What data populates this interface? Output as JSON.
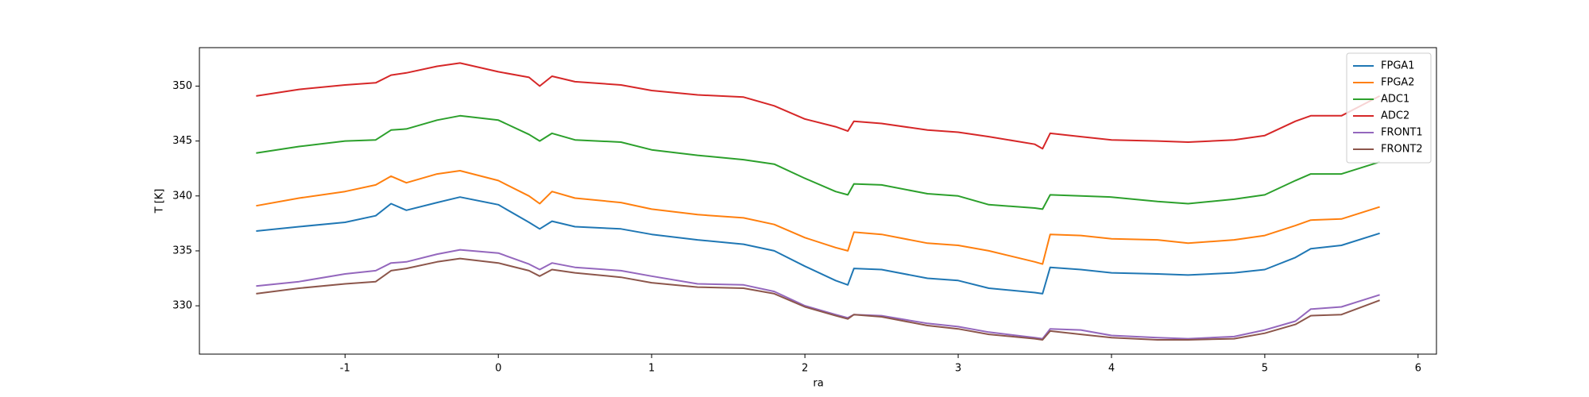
{
  "chart_data": {
    "type": "line",
    "x_label": "ra",
    "y_label": "T [K]",
    "x": [
      -1.58,
      -1.3,
      -1.0,
      -0.8,
      -0.7,
      -0.6,
      -0.4,
      -0.25,
      0,
      0.2,
      0.27,
      0.35,
      0.5,
      0.8,
      1.0,
      1.3,
      1.6,
      1.8,
      2.0,
      2.2,
      2.28,
      2.32,
      2.5,
      2.8,
      3.0,
      3.2,
      3.5,
      3.55,
      3.6,
      3.8,
      4.0,
      4.3,
      4.5,
      4.8,
      5.0,
      5.2,
      5.3,
      5.5,
      5.75
    ],
    "series": [
      {
        "name": "FPGA1",
        "color": "#1f77b4",
        "values": [
          336.8,
          337.2,
          337.6,
          338.2,
          339.3,
          338.7,
          339.4,
          339.9,
          339.2,
          337.6,
          337.0,
          337.7,
          337.2,
          337.0,
          336.5,
          336.0,
          335.6,
          335.0,
          333.6,
          332.3,
          331.9,
          333.4,
          333.3,
          332.5,
          332.3,
          331.6,
          331.2,
          331.1,
          333.5,
          333.3,
          333.0,
          332.9,
          332.8,
          333.0,
          333.3,
          334.4,
          335.2,
          335.5,
          336.6
        ]
      },
      {
        "name": "FPGA2",
        "color": "#ff7f0e",
        "values": [
          339.1,
          339.8,
          340.4,
          341.0,
          341.8,
          341.2,
          342.0,
          342.3,
          341.4,
          340.0,
          339.3,
          340.4,
          339.8,
          339.4,
          338.8,
          338.3,
          338.0,
          337.4,
          336.2,
          335.3,
          335.0,
          336.7,
          336.5,
          335.7,
          335.5,
          335.0,
          334.0,
          333.8,
          336.5,
          336.4,
          336.1,
          336.0,
          335.7,
          336.0,
          336.4,
          337.3,
          337.8,
          337.9,
          339.0
        ]
      },
      {
        "name": "ADC1",
        "color": "#2ca02c",
        "values": [
          343.9,
          344.5,
          345.0,
          345.1,
          346.0,
          346.1,
          346.9,
          347.3,
          346.9,
          345.6,
          345.0,
          345.7,
          345.1,
          344.9,
          344.2,
          343.7,
          343.3,
          342.9,
          341.6,
          340.4,
          340.1,
          341.1,
          341.0,
          340.2,
          340.0,
          339.2,
          338.9,
          338.8,
          340.1,
          340.0,
          339.9,
          339.5,
          339.3,
          339.7,
          340.1,
          341.4,
          342.0,
          342.0,
          343.1
        ]
      },
      {
        "name": "ADC2",
        "color": "#d62728",
        "values": [
          349.1,
          349.7,
          350.1,
          350.3,
          351.0,
          351.2,
          351.8,
          352.1,
          351.3,
          350.8,
          350.0,
          350.9,
          350.4,
          350.1,
          349.6,
          349.2,
          349.0,
          348.2,
          347.0,
          346.3,
          345.9,
          346.8,
          346.6,
          346.0,
          345.8,
          345.4,
          344.7,
          344.3,
          345.7,
          345.4,
          345.1,
          345.0,
          344.9,
          345.1,
          345.5,
          346.8,
          347.3,
          347.3,
          349.1
        ]
      },
      {
        "name": "FRONT1",
        "color": "#9467bd",
        "values": [
          331.8,
          332.2,
          332.9,
          333.2,
          333.9,
          334.0,
          334.7,
          335.1,
          334.8,
          333.8,
          333.3,
          333.9,
          333.5,
          333.2,
          332.7,
          332.0,
          331.9,
          331.3,
          330.0,
          329.2,
          328.9,
          329.2,
          329.1,
          328.4,
          328.1,
          327.6,
          327.1,
          327.0,
          327.9,
          327.8,
          327.3,
          327.1,
          327.0,
          327.2,
          327.8,
          328.6,
          329.7,
          329.9,
          331.0
        ]
      },
      {
        "name": "FRONT2",
        "color": "#8c564b",
        "values": [
          331.1,
          331.6,
          332.0,
          332.2,
          333.2,
          333.4,
          334.0,
          334.3,
          333.9,
          333.2,
          332.7,
          333.3,
          333.0,
          332.6,
          332.1,
          331.7,
          331.6,
          331.1,
          329.9,
          329.1,
          328.8,
          329.2,
          329.0,
          328.2,
          327.9,
          327.4,
          327.0,
          326.9,
          327.7,
          327.4,
          327.1,
          326.9,
          326.9,
          327.0,
          327.5,
          328.3,
          329.1,
          329.2,
          330.5
        ]
      }
    ],
    "xlim": [
      -1.95,
      6.12
    ],
    "xticks": [
      -1,
      0,
      1,
      2,
      3,
      4,
      5,
      6
    ],
    "ylim": [
      325.6,
      353.5
    ],
    "yticks": [
      330,
      335,
      340,
      345,
      350
    ],
    "grid": false,
    "legend": "upper right"
  }
}
